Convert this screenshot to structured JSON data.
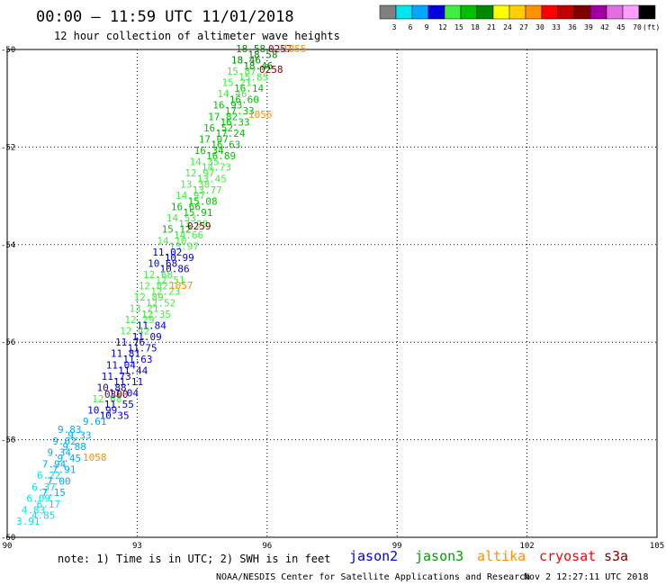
{
  "header": {
    "title": "00:00 – 11:59 UTC 11/01/2018",
    "subtitle": "12 hour collection of altimeter wave heights"
  },
  "colorbar": {
    "unit": "(ft)",
    "bins": [
      {
        "label": "3",
        "color": "#808080"
      },
      {
        "label": "6",
        "color": "#00e5ee"
      },
      {
        "label": "9",
        "color": "#00a8ff"
      },
      {
        "label": "12",
        "color": "#0000e0"
      },
      {
        "label": "15",
        "color": "#40ee40"
      },
      {
        "label": "18",
        "color": "#00c000"
      },
      {
        "label": "21",
        "color": "#008800"
      },
      {
        "label": "24",
        "color": "#ffff00"
      },
      {
        "label": "27",
        "color": "#ffd000"
      },
      {
        "label": "30",
        "color": "#ff9000"
      },
      {
        "label": "33",
        "color": "#ff0000"
      },
      {
        "label": "36",
        "color": "#c00000"
      },
      {
        "label": "39",
        "color": "#800000"
      },
      {
        "label": "42",
        "color": "#a000a0"
      },
      {
        "label": "45",
        "color": "#e070e0"
      },
      {
        "label": "70",
        "color": "#ffa0ff"
      },
      {
        "label": "",
        "color": "#000000"
      }
    ]
  },
  "chart_data": {
    "type": "scatter",
    "xlim": [
      90,
      105
    ],
    "ylim": [
      -60,
      -50
    ],
    "xticks": [
      "90",
      "93",
      "96",
      "99",
      "102",
      "105"
    ],
    "yticks": [
      "-50",
      "-52",
      "-54",
      "-56",
      "-58",
      "-60"
    ],
    "grid": true,
    "points": [
      {
        "x": 96.15,
        "y": -50.0,
        "label": "18.58",
        "color": "#008800"
      },
      {
        "x": 96.45,
        "y": -50.0,
        "label": "18.58",
        "color": "#008800"
      },
      {
        "x": 96.0,
        "y": -50.2,
        "label": "18.46",
        "color": "#008800"
      },
      {
        "x": 96.05,
        "y": -50.2,
        "label": "18.46",
        "color": "#008800"
      },
      {
        "x": 95.85,
        "y": -50.4,
        "label": "15.87",
        "color": "#40ee40"
      },
      {
        "x": 96.1,
        "y": -50.4,
        "label": "15.85",
        "color": "#40ee40"
      },
      {
        "x": 95.8,
        "y": -50.65,
        "label": "15.21",
        "color": "#40ee40"
      },
      {
        "x": 95.9,
        "y": -50.75,
        "label": "16.14",
        "color": "#00c000"
      },
      {
        "x": 95.75,
        "y": -51.0,
        "label": "14.46",
        "color": "#40ee40"
      },
      {
        "x": 95.6,
        "y": -51.2,
        "label": "16.60",
        "color": "#00c000"
      },
      {
        "x": 95.65,
        "y": -51.3,
        "label": "16.93",
        "color": "#00c000"
      },
      {
        "x": 95.5,
        "y": -51.55,
        "label": "17.33",
        "color": "#00c000"
      },
      {
        "x": 95.6,
        "y": -51.65,
        "label": "17.82",
        "color": "#00c000"
      },
      {
        "x": 95.4,
        "y": -51.85,
        "label": "16.33",
        "color": "#00c000"
      },
      {
        "x": 95.5,
        "y": -51.95,
        "label": "16.52",
        "color": "#00c000"
      },
      {
        "x": 95.35,
        "y": -52.1,
        "label": "17.24",
        "color": "#00c000"
      },
      {
        "x": 95.45,
        "y": -52.2,
        "label": "17.07",
        "color": "#00c000"
      },
      {
        "x": 95.25,
        "y": -52.4,
        "label": "16.63",
        "color": "#00c000"
      },
      {
        "x": 95.35,
        "y": -52.5,
        "label": "16.34",
        "color": "#00c000"
      },
      {
        "x": 95.15,
        "y": -52.7,
        "label": "16.89",
        "color": "#00c000"
      },
      {
        "x": 95.3,
        "y": -52.8,
        "label": "14.35",
        "color": "#40ee40"
      },
      {
        "x": 95.0,
        "y": -53.0,
        "label": "14.73",
        "color": "#40ee40"
      },
      {
        "x": 95.1,
        "y": -53.1,
        "label": "12.97",
        "color": "#40ee40"
      },
      {
        "x": 94.9,
        "y": -53.3,
        "label": "13.45",
        "color": "#40ee40"
      },
      {
        "x": 95.0,
        "y": -53.4,
        "label": "13.38",
        "color": "#40ee40"
      },
      {
        "x": 94.8,
        "y": -53.6,
        "label": "13.77",
        "color": "#40ee40"
      },
      {
        "x": 94.95,
        "y": -53.7,
        "label": "14.97",
        "color": "#40ee40"
      },
      {
        "x": 94.7,
        "y": -53.9,
        "label": "15.08",
        "color": "#00c000"
      },
      {
        "x": 94.75,
        "y": -54.2,
        "label": "16.66",
        "color": "#00c000"
      },
      {
        "x": 94.9,
        "y": -54.3,
        "label": "15.91",
        "color": "#00c000"
      },
      {
        "x": 94.6,
        "y": -54.55,
        "label": "14.53",
        "color": "#40ee40"
      },
      {
        "x": 94.75,
        "y": -54.55,
        "label": "13.98",
        "color": "#40ee40"
      },
      {
        "x": 94.4,
        "y": -54.85,
        "label": "15.12",
        "color": "#00c000"
      },
      {
        "x": 94.6,
        "y": -54.85,
        "label": "14.66",
        "color": "#40ee40"
      },
      {
        "x": 94.3,
        "y": -55.1,
        "label": "14.10",
        "color": "#40ee40"
      },
      {
        "x": 94.45,
        "y": -55.1,
        "label": "13.97",
        "color": "#40ee40"
      },
      {
        "x": 94.1,
        "y": -55.4,
        "label": "11.02",
        "color": "#0000e0"
      },
      {
        "x": 94.25,
        "y": -55.45,
        "label": "10.99",
        "color": "#0000e0"
      },
      {
        "x": 94.1,
        "y": -55.7,
        "label": "10.68",
        "color": "#0000e0"
      },
      {
        "x": 94.2,
        "y": -55.85,
        "label": "10.86",
        "color": "#0000e0"
      },
      {
        "x": 93.9,
        "y": -56.2,
        "label": "12.68",
        "color": "#40ee40"
      },
      {
        "x": 94.05,
        "y": -56.3,
        "label": "12.51",
        "color": "#40ee40"
      },
      {
        "x": 93.75,
        "y": -56.5,
        "label": "12.82",
        "color": "#40ee40"
      },
      {
        "x": 93.9,
        "y": -56.6,
        "label": "12.23",
        "color": "#40ee40"
      },
      {
        "x": 93.55,
        "y": -56.8,
        "label": "12.89",
        "color": "#40ee40"
      },
      {
        "x": 93.7,
        "y": -56.95,
        "label": "12.52",
        "color": "#40ee40"
      },
      {
        "x": 93.45,
        "y": -57.15,
        "label": "13.21",
        "color": "#40ee40"
      },
      {
        "x": 93.65,
        "y": -57.25,
        "label": "12.35",
        "color": "#40ee40"
      },
      {
        "x": 93.4,
        "y": -57.6,
        "label": "12.29",
        "color": "#40ee40"
      },
      {
        "x": 93.5,
        "y": -57.95,
        "label": "11.84",
        "color": "#0000e0"
      },
      {
        "x": 93.2,
        "y": -58.05,
        "label": "12.42",
        "color": "#40ee40"
      },
      {
        "x": 93.35,
        "y": -58.3,
        "label": "11.09",
        "color": "#0000e0"
      },
      {
        "x": 93.1,
        "y": -58.45,
        "label": "11.76",
        "color": "#0000e0"
      },
      {
        "x": 93.2,
        "y": -58.55,
        "label": "11.75",
        "color": "#0000e0"
      },
      {
        "x": 93.0,
        "y": -58.75,
        "label": "11.81",
        "color": "#0000e0"
      },
      {
        "x": 93.25,
        "y": -58.7,
        "label": "11.63",
        "color": "#0000e0"
      },
      {
        "x": 92.9,
        "y": -59.05,
        "label": "11.04",
        "color": "#0000e0"
      },
      {
        "x": 93.1,
        "y": -59.0,
        "label": "11.44",
        "color": "#0000e0"
      },
      {
        "x": 92.75,
        "y": -59.3,
        "label": "11.73",
        "color": "#0000e0"
      },
      {
        "x": 92.9,
        "y": -59.3,
        "label": "11.11",
        "color": "#0000e0"
      },
      {
        "x": 92.65,
        "y": -59.55,
        "label": "10.88",
        "color": "#0000e0"
      },
      {
        "x": 92.8,
        "y": -59.6,
        "label": "11.04",
        "color": "#0000e0"
      },
      {
        "x": 92.6,
        "y": -59.85,
        "label": "12.68",
        "color": "#40ee40"
      },
      {
        "x": 92.75,
        "y": -59.85,
        "label": "11.55",
        "color": "#0000e0"
      },
      {
        "x": 92.5,
        "y": -60.0,
        "label": "10.99",
        "color": "#0000e0"
      },
      {
        "x": 92.7,
        "y": -60.0,
        "label": "10.35",
        "color": "#0000e0"
      },
      {
        "x": 92.3,
        "y": -60.0,
        "label": "9.61",
        "color": "#00a8ff"
      }
    ],
    "extra_labels": [
      {
        "x": 96.0,
        "y": -50.0,
        "label": "0257",
        "color": "#800000"
      },
      {
        "x": 96.45,
        "y": -50.0,
        "label": "1055",
        "color": "#ff9000"
      },
      {
        "x": 96.2,
        "y": -50.45,
        "label": "0258",
        "color": "#800000"
      },
      {
        "x": 96.2,
        "y": -51.45,
        "label": "1056",
        "color": "#ff9000"
      },
      {
        "x": 95.2,
        "y": -53.95,
        "label": "0259",
        "color": "#800000"
      },
      {
        "x": 94.65,
        "y": -55.3,
        "label": "1057",
        "color": "#ff9000"
      },
      {
        "x": 93.3,
        "y": -57.4,
        "label": "0300",
        "color": "#800000"
      },
      {
        "x": 92.0,
        "y": -58.65,
        "label": "1058",
        "color": "#ff9000"
      }
    ],
    "low_points": [
      {
        "x": 92.0,
        "y": -58.05,
        "label": "9.83",
        "color": "#00a8ff"
      },
      {
        "x": 92.2,
        "y": -58.0,
        "label": "9.33",
        "color": "#00a8ff"
      },
      {
        "x": 91.85,
        "y": -58.35,
        "label": "9.62",
        "color": "#00a8ff"
      },
      {
        "x": 92.05,
        "y": -58.35,
        "label": "9.88",
        "color": "#00a8ff"
      },
      {
        "x": 91.8,
        "y": -58.6,
        "label": "9.34",
        "color": "#00a8ff"
      },
      {
        "x": 91.95,
        "y": -58.65,
        "label": "9.45",
        "color": "#00a8ff"
      },
      {
        "x": 91.5,
        "y": -58.85,
        "label": "7.94",
        "color": "#00a8ff"
      },
      {
        "x": 91.65,
        "y": -58.9,
        "label": "7.91",
        "color": "#00a8ff"
      },
      {
        "x": 91.25,
        "y": -59.1,
        "label": "6.22",
        "color": "#00e5ee"
      },
      {
        "x": 91.4,
        "y": -59.15,
        "label": "7.00",
        "color": "#00a8ff"
      },
      {
        "x": 91.15,
        "y": -59.35,
        "label": "6.37",
        "color": "#00e5ee"
      },
      {
        "x": 91.3,
        "y": -59.4,
        "label": "7.15",
        "color": "#00a8ff"
      },
      {
        "x": 91.0,
        "y": -59.6,
        "label": "6.09",
        "color": "#00e5ee"
      },
      {
        "x": 91.2,
        "y": -59.65,
        "label": "6.17",
        "color": "#00e5ee"
      },
      {
        "x": 90.85,
        "y": -59.85,
        "label": "4.83",
        "color": "#00e5ee"
      },
      {
        "x": 90.95,
        "y": -59.9,
        "label": "4.85",
        "color": "#00e5ee"
      },
      {
        "x": 90.55,
        "y": -60.0,
        "label": "3.91",
        "color": "#00e5ee"
      }
    ]
  },
  "note": "note:  1) Time is in UTC; 2) SWH is in feet",
  "legend": [
    {
      "name": "jason2",
      "color": "#0000e0"
    },
    {
      "name": "jason3",
      "color": "#00a000"
    },
    {
      "name": "altika",
      "color": "#ff9000"
    },
    {
      "name": "cryosat",
      "color": "#ff0000"
    },
    {
      "name": "s3a",
      "color": "#800000"
    }
  ],
  "footer": {
    "left": "NOAA/NESDIS Center for Satellite Applications and Research",
    "right": "Nov  2 12:27:11 UTC 2018"
  }
}
